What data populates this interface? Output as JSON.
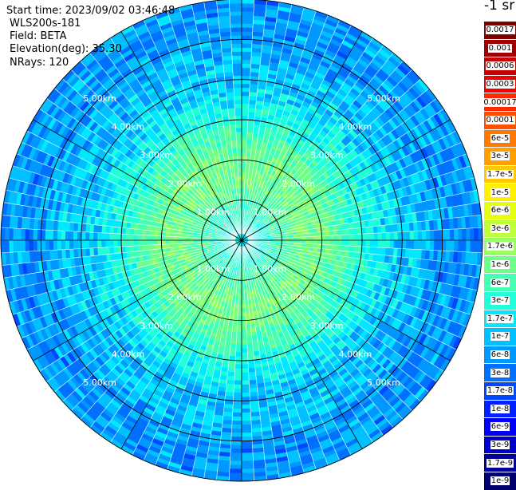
{
  "header": {
    "start_time": "Start time: 2023/09/02 03:46:48",
    "device": "WLS200s-181",
    "field": "Field: BETA",
    "elevation": "Elevation(deg): 35.30",
    "nrays": "NRays: 120"
  },
  "colorbar": {
    "unit": "-1 sr",
    "levels": [
      {
        "label": "0.0017",
        "color": "#800000"
      },
      {
        "label": "0.001",
        "color": "#a00000"
      },
      {
        "label": "0.0006",
        "color": "#c80000"
      },
      {
        "label": "0.0003",
        "color": "#f00000"
      },
      {
        "label": "0.00017",
        "color": "#ff2800"
      },
      {
        "label": "0.0001",
        "color": "#ff5000"
      },
      {
        "label": "6e-5",
        "color": "#ff7800"
      },
      {
        "label": "3e-5",
        "color": "#ffa000"
      },
      {
        "label": "1.7e-5",
        "color": "#ffc800"
      },
      {
        "label": "1e-5",
        "color": "#fff000"
      },
      {
        "label": "6e-6",
        "color": "#e6ff10"
      },
      {
        "label": "3e-6",
        "color": "#beff39"
      },
      {
        "label": "1.7e-6",
        "color": "#96ff61"
      },
      {
        "label": "1e-6",
        "color": "#6eff89"
      },
      {
        "label": "6e-7",
        "color": "#46ffb2"
      },
      {
        "label": "3e-7",
        "color": "#1effda"
      },
      {
        "label": "1.7e-7",
        "color": "#00e8ff"
      },
      {
        "label": "1e-7",
        "color": "#00c0ff"
      },
      {
        "label": "6e-8",
        "color": "#0098ff"
      },
      {
        "label": "3e-8",
        "color": "#0070ff"
      },
      {
        "label": "1.7e-8",
        "color": "#0048ff"
      },
      {
        "label": "1e-8",
        "color": "#0020ff"
      },
      {
        "label": "6e-9",
        "color": "#0000f6"
      },
      {
        "label": "3e-9",
        "color": "#0000c8"
      },
      {
        "label": "1.7e-9",
        "color": "#00009a"
      },
      {
        "label": "1e-9",
        "color": "#00006e"
      }
    ]
  },
  "chart_data": {
    "type": "heatmap",
    "projection": "polar (PPI)",
    "field": "BETA",
    "nrays": 120,
    "range_max_km": 6,
    "range_rings_km": [
      1,
      2,
      3,
      4,
      5,
      6
    ],
    "range_ring_labels": [
      "1.00km",
      "2.00km",
      "3.00km",
      "4.00km",
      "5.00km"
    ],
    "spokes_deg": [
      0,
      30,
      60,
      90,
      120,
      150,
      180,
      210,
      240,
      270,
      300,
      330
    ],
    "grid": true,
    "radial_profile": {
      "range_km": [
        0.0,
        0.5,
        1.0,
        1.5,
        2.0,
        2.5,
        3.0,
        3.5,
        4.0,
        4.5,
        5.0,
        5.5,
        6.0
      ],
      "typical_level_index": [
        16,
        15,
        14,
        13,
        13,
        14,
        15,
        16,
        17,
        17,
        18,
        18,
        18
      ]
    }
  }
}
